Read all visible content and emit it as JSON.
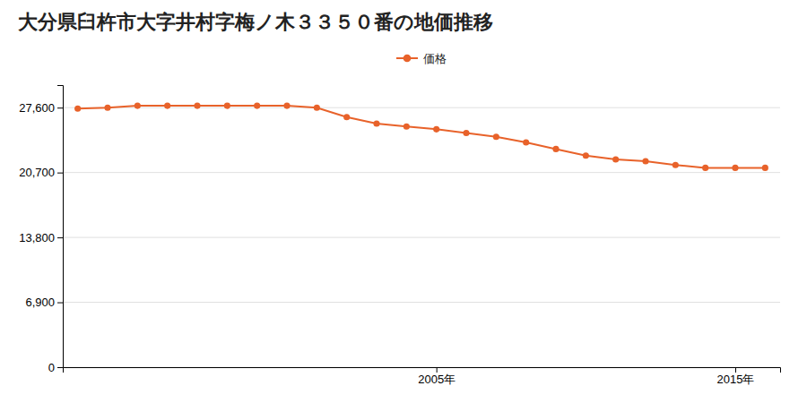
{
  "chart_data": {
    "type": "line",
    "title": "大分県臼杵市大字井村字梅ノ木３３５０番の地価推移",
    "x": [
      1993,
      1994,
      1995,
      1996,
      1997,
      1998,
      1999,
      2000,
      2001,
      2002,
      2003,
      2004,
      2005,
      2006,
      2007,
      2008,
      2009,
      2010,
      2011,
      2012,
      2013,
      2014,
      2015,
      2016
    ],
    "series": [
      {
        "name": "価格",
        "color": "#e8622a",
        "marker": "circle",
        "values": [
          27500,
          27600,
          27800,
          27800,
          27800,
          27800,
          27800,
          27800,
          27600,
          26600,
          25900,
          25600,
          25300,
          24900,
          24500,
          23900,
          23200,
          22500,
          22100,
          21900,
          21500,
          21200,
          21200,
          21200
        ]
      }
    ],
    "xlim": [
      1992.5,
      2016.5
    ],
    "xticks": [
      {
        "value": 2005,
        "label": "2005年"
      },
      {
        "value": 2015,
        "label": "2015年"
      }
    ],
    "ylim": [
      0,
      30000
    ],
    "yticks": [
      0,
      {
        "value": 6900,
        "label": "6,900"
      },
      {
        "value": 13800,
        "label": "13,800"
      },
      {
        "value": 20700,
        "label": "20,700"
      },
      {
        "value": 27600,
        "label": "27,600"
      }
    ],
    "grid": true,
    "legend": "top"
  }
}
